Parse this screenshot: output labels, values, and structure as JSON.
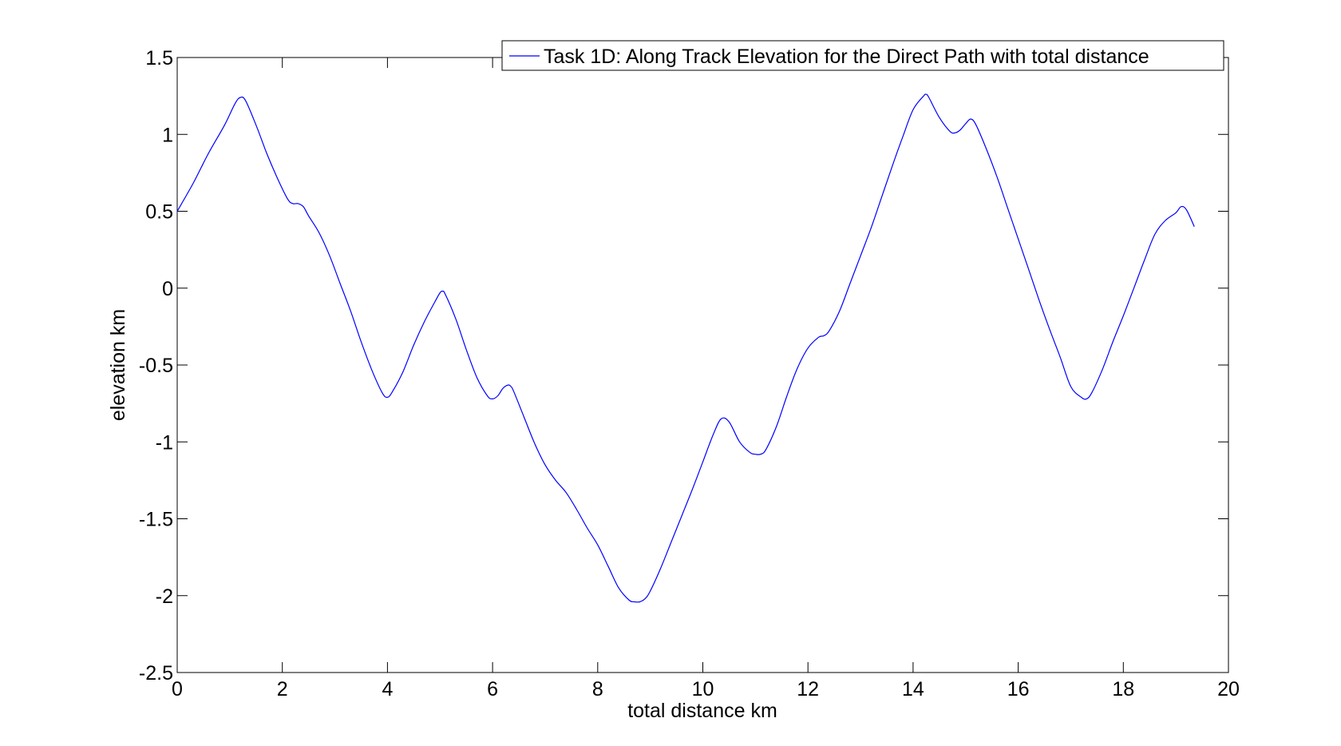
{
  "chart_data": {
    "type": "line",
    "title": "",
    "xlabel": "total distance km",
    "ylabel": "elevation km",
    "xlim": [
      0,
      20
    ],
    "ylim": [
      -2.5,
      1.5
    ],
    "xticks": [
      0,
      2,
      4,
      6,
      8,
      10,
      12,
      14,
      16,
      18,
      20
    ],
    "yticks": [
      1.5,
      1,
      0.5,
      0,
      -0.5,
      -1,
      -1.5,
      -2,
      -2.5
    ],
    "xtick_labels": [
      "0",
      "2",
      "4",
      "6",
      "8",
      "10",
      "12",
      "14",
      "16",
      "18",
      "20"
    ],
    "ytick_labels": [
      "1.5",
      "1",
      "0.5",
      "0",
      "-0.5",
      "-1",
      "-1.5",
      "-2",
      "-2.5"
    ],
    "grid": false,
    "legend_position": "top-right",
    "series": [
      {
        "name": "Task 1D: Along Track Elevation for the Direct Path with total distance",
        "color": "#0000ff",
        "x": [
          0,
          0.3,
          0.6,
          0.9,
          1.1,
          1.2,
          1.3,
          1.5,
          1.7,
          1.9,
          2.1,
          2.2,
          2.3,
          2.4,
          2.5,
          2.7,
          2.9,
          3.1,
          3.3,
          3.5,
          3.7,
          3.9,
          4.0,
          4.1,
          4.3,
          4.5,
          4.7,
          4.9,
          5.0,
          5.05,
          5.1,
          5.3,
          5.5,
          5.7,
          5.9,
          6.0,
          6.1,
          6.2,
          6.3,
          6.35,
          6.4,
          6.6,
          6.8,
          7.0,
          7.2,
          7.4,
          7.6,
          7.8,
          8.0,
          8.2,
          8.4,
          8.6,
          8.7,
          8.8,
          8.9,
          9.0,
          9.2,
          9.4,
          9.6,
          9.8,
          10.0,
          10.2,
          10.35,
          10.5,
          10.7,
          10.9,
          11.0,
          11.1,
          11.2,
          11.4,
          11.6,
          11.8,
          12.0,
          12.2,
          12.3,
          12.4,
          12.6,
          12.8,
          13.0,
          13.2,
          13.4,
          13.6,
          13.8,
          14.0,
          14.2,
          14.25,
          14.3,
          14.5,
          14.7,
          14.8,
          14.9,
          15.0,
          15.1,
          15.2,
          15.4,
          15.6,
          15.8,
          16.0,
          16.2,
          16.4,
          16.6,
          16.8,
          17.0,
          17.2,
          17.3,
          17.4,
          17.6,
          17.8,
          18.0,
          18.2,
          18.4,
          18.6,
          18.8,
          19.0,
          19.1,
          19.2,
          19.35
        ],
        "y": [
          0.5,
          0.68,
          0.88,
          1.06,
          1.2,
          1.24,
          1.22,
          1.06,
          0.88,
          0.72,
          0.58,
          0.55,
          0.55,
          0.53,
          0.47,
          0.36,
          0.21,
          0.03,
          -0.15,
          -0.35,
          -0.53,
          -0.68,
          -0.71,
          -0.67,
          -0.54,
          -0.37,
          -0.22,
          -0.09,
          -0.03,
          -0.02,
          -0.04,
          -0.2,
          -0.4,
          -0.58,
          -0.7,
          -0.72,
          -0.7,
          -0.65,
          -0.63,
          -0.64,
          -0.67,
          -0.84,
          -1.01,
          -1.15,
          -1.25,
          -1.33,
          -1.44,
          -1.56,
          -1.67,
          -1.81,
          -1.95,
          -2.03,
          -2.04,
          -2.04,
          -2.02,
          -1.97,
          -1.82,
          -1.65,
          -1.48,
          -1.31,
          -1.13,
          -0.95,
          -0.85,
          -0.87,
          -1.0,
          -1.07,
          -1.08,
          -1.08,
          -1.05,
          -0.9,
          -0.7,
          -0.52,
          -0.39,
          -0.32,
          -0.31,
          -0.28,
          -0.15,
          0.03,
          0.21,
          0.39,
          0.59,
          0.79,
          0.98,
          1.16,
          1.25,
          1.26,
          1.24,
          1.11,
          1.02,
          1.01,
          1.03,
          1.07,
          1.1,
          1.06,
          0.9,
          0.72,
          0.52,
          0.32,
          0.12,
          -0.08,
          -0.27,
          -0.45,
          -0.64,
          -0.71,
          -0.72,
          -0.68,
          -0.53,
          -0.35,
          -0.18,
          0.0,
          0.18,
          0.35,
          0.44,
          0.49,
          0.53,
          0.51,
          0.4
        ]
      }
    ]
  }
}
